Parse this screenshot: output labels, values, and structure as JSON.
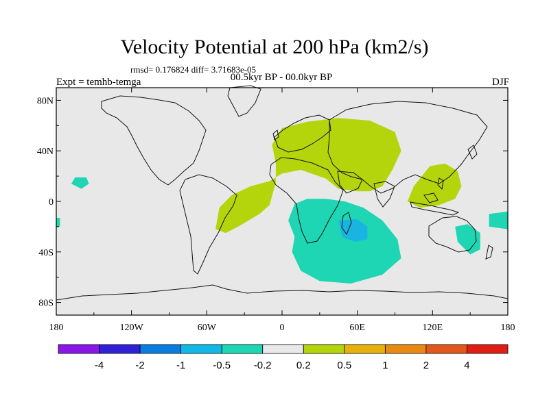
{
  "title": "Velocity Potential at 200 hPa (km2/s)",
  "stats": "rmsd= 0.176824 diff= 3.71683e-05",
  "experiment": "Expt = temhb-temga",
  "period": "00.5kyr BP - 00.0kyr BP",
  "season": "DJF",
  "map": {
    "lon_range": [
      -180,
      180
    ],
    "lat_range": [
      -90,
      90
    ],
    "x_ticks": [
      {
        "lon": -180,
        "label": "180"
      },
      {
        "lon": -120,
        "label": "120W"
      },
      {
        "lon": -60,
        "label": "60W"
      },
      {
        "lon": 0,
        "label": "0"
      },
      {
        "lon": 60,
        "label": "60E"
      },
      {
        "lon": 120,
        "label": "120E"
      },
      {
        "lon": 180,
        "label": "180"
      }
    ],
    "y_ticks": [
      {
        "lat": 80,
        "label": "80N"
      },
      {
        "lat": 40,
        "label": "40N"
      },
      {
        "lat": 0,
        "label": "0"
      },
      {
        "lat": -40,
        "label": "40S"
      },
      {
        "lat": -80,
        "label": "80S"
      }
    ],
    "background_color": "#e8e8e8",
    "positive_color": "#b4d40c",
    "negative_color": "#1ed6b4",
    "negative_strong_color": "#19b4e0",
    "regions": [
      {
        "name": "eurasia-africa-positive",
        "sign": "positive",
        "points": [
          [
            -5,
            30
          ],
          [
            -8,
            45
          ],
          [
            0,
            58
          ],
          [
            20,
            63
          ],
          [
            45,
            66
          ],
          [
            70,
            64
          ],
          [
            90,
            55
          ],
          [
            95,
            40
          ],
          [
            88,
            25
          ],
          [
            80,
            12
          ],
          [
            70,
            8
          ],
          [
            60,
            8
          ],
          [
            45,
            10
          ],
          [
            35,
            18
          ],
          [
            15,
            25
          ],
          [
            0,
            22
          ],
          [
            -10,
            16
          ],
          [
            -25,
            12
          ],
          [
            -40,
            5
          ],
          [
            -50,
            -5
          ],
          [
            -53,
            -22
          ],
          [
            -45,
            -25
          ],
          [
            -35,
            -20
          ],
          [
            -18,
            -10
          ],
          [
            -10,
            -3
          ],
          [
            -5,
            15
          ]
        ]
      },
      {
        "name": "west-pacific-positive",
        "sign": "positive",
        "points": [
          [
            100,
            0
          ],
          [
            105,
            12
          ],
          [
            118,
            28
          ],
          [
            130,
            30
          ],
          [
            140,
            24
          ],
          [
            143,
            12
          ],
          [
            138,
            2
          ],
          [
            125,
            -3
          ],
          [
            110,
            -5
          ]
        ]
      },
      {
        "name": "indian-ocean-negative",
        "sign": "negative",
        "points": [
          [
            10,
            -2
          ],
          [
            5,
            -15
          ],
          [
            10,
            -28
          ],
          [
            8,
            -40
          ],
          [
            15,
            -55
          ],
          [
            30,
            -63
          ],
          [
            55,
            -65
          ],
          [
            80,
            -58
          ],
          [
            95,
            -45
          ],
          [
            92,
            -30
          ],
          [
            80,
            -15
          ],
          [
            65,
            -5
          ],
          [
            50,
            0
          ],
          [
            35,
            2
          ],
          [
            20,
            2
          ]
        ]
      },
      {
        "name": "australia-negative",
        "sign": "negative",
        "points": [
          [
            138,
            -20
          ],
          [
            140,
            -32
          ],
          [
            150,
            -42
          ],
          [
            158,
            -38
          ],
          [
            158,
            -25
          ],
          [
            148,
            -18
          ]
        ]
      },
      {
        "name": "central-pacific-negative",
        "sign": "negative",
        "points": [
          [
            -168,
            14
          ],
          [
            -165,
            19
          ],
          [
            -156,
            19
          ],
          [
            -154,
            14
          ],
          [
            -160,
            10
          ]
        ]
      },
      {
        "name": "east-edge-negative",
        "sign": "negative",
        "points": [
          [
            165,
            -10
          ],
          [
            165,
            -20
          ],
          [
            180,
            -22
          ],
          [
            180,
            -8
          ]
        ]
      },
      {
        "name": "west-edge-negative",
        "sign": "negative",
        "points": [
          [
            -180,
            -13
          ],
          [
            -180,
            -20
          ],
          [
            -177,
            -20
          ],
          [
            -177,
            -13
          ]
        ]
      },
      {
        "name": "madagascar-strong-negative",
        "sign": "negative-strong",
        "points": [
          [
            45,
            -15
          ],
          [
            48,
            -28
          ],
          [
            58,
            -32
          ],
          [
            68,
            -30
          ],
          [
            68,
            -20
          ],
          [
            60,
            -14
          ]
        ]
      }
    ]
  },
  "colorbar": {
    "colors": [
      "#8a17e6",
      "#2f22d6",
      "#0b7de0",
      "#12b8e6",
      "#1ed6b4",
      "#e8e8e8",
      "#b4d40c",
      "#e8b00f",
      "#e88a12",
      "#e2581c",
      "#e01e14"
    ],
    "labels": [
      "-4",
      "-2",
      "-1",
      "-0.5",
      "-0.2",
      "0.2",
      "0.5",
      "1",
      "2",
      "4"
    ]
  }
}
